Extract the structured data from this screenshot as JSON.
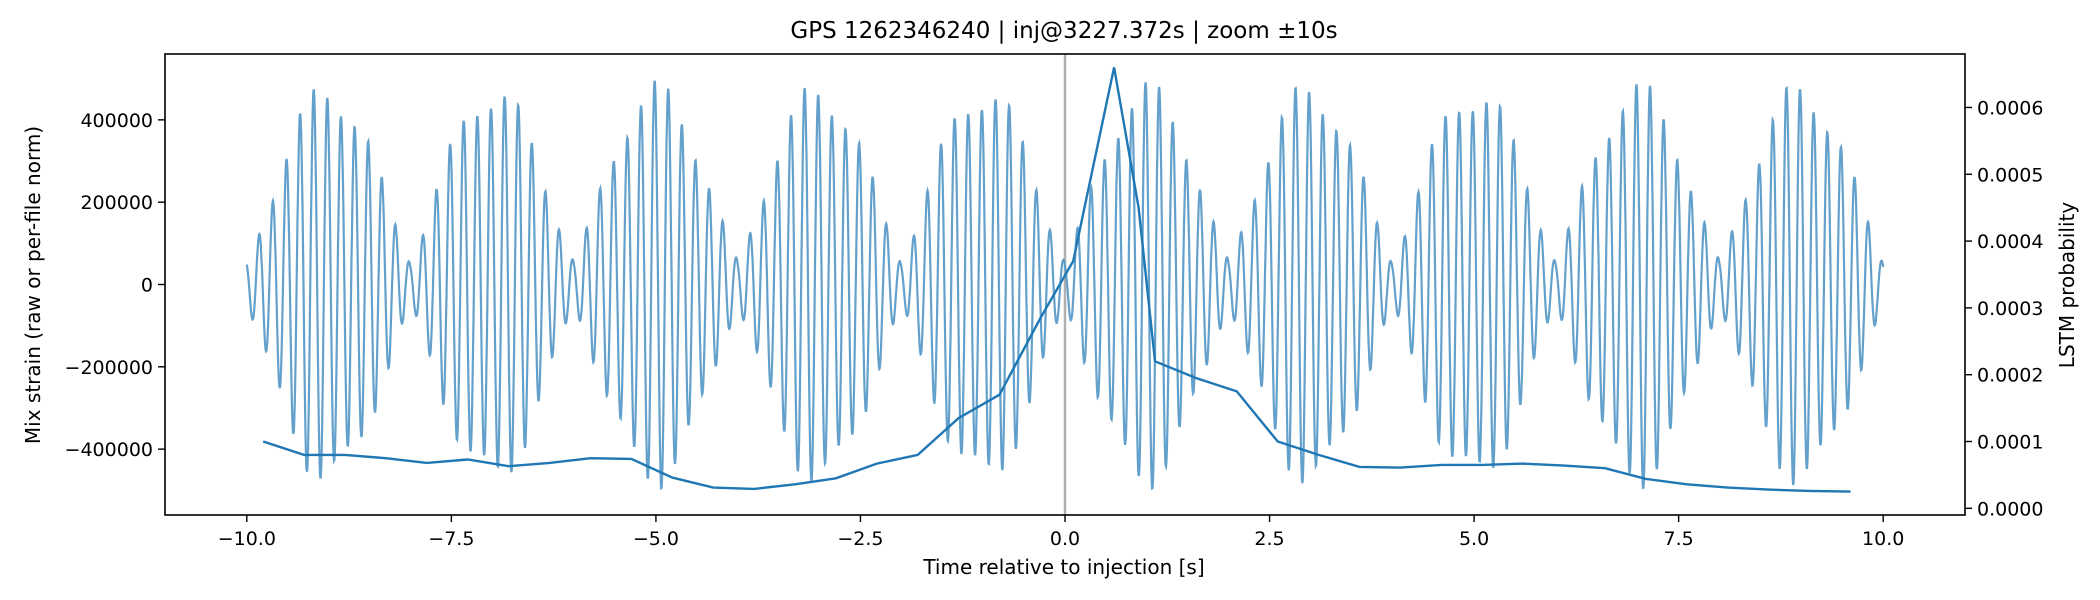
{
  "chart_data": {
    "type": "line",
    "title": "GPS 1262346240 | inj@3227.372s | zoom ±10s",
    "xlabel": "Time relative to injection [s]",
    "ylabel_left": "Mix strain (raw or per-file norm)",
    "ylabel_right": "LSTM probability",
    "xlim": [
      -11,
      11
    ],
    "ylim_left": [
      -560000,
      560000
    ],
    "ylim_right": [
      -1e-05,
      0.00068
    ],
    "x_ticks": [
      -10,
      -7.5,
      -5,
      -2.5,
      0,
      2.5,
      5,
      7.5,
      10
    ],
    "x_tick_labels": [
      "−10.0",
      "−7.5",
      "−5.0",
      "−2.5",
      "0.0",
      "2.5",
      "5.0",
      "7.5",
      "10.0"
    ],
    "y_left_ticks": [
      400000,
      200000,
      0,
      -200000,
      -400000
    ],
    "y_left_tick_labels": [
      "400000",
      "200000",
      "0",
      "−200000",
      "−400000"
    ],
    "y_right_ticks": [
      0.0006,
      0.0005,
      0.0004,
      0.0003,
      0.0002,
      0.0001,
      0.0
    ],
    "y_right_tick_labels": [
      "0.0006",
      "0.0005",
      "0.0004",
      "0.0003",
      "0.0002",
      "0.0001",
      "0.0000"
    ],
    "injection_marker_x": 0,
    "strain_series": {
      "name": "Mix strain",
      "color": "#5b9bc8",
      "x_range": [
        -10,
        10
      ],
      "beat_period_s": 2.0,
      "burst_centers_s": [
        -9,
        -7,
        -5,
        -3,
        -1,
        1,
        3,
        5,
        7,
        9
      ],
      "peak_amplitude": 500000,
      "trough_amplitude": 60000,
      "carrier_cycles_per_burst": 12
    },
    "probability_series": {
      "name": "LSTM probability",
      "color": "#1f77b4",
      "x": [
        -9.8,
        -9.3,
        -8.8,
        -8.3,
        -7.8,
        -7.3,
        -6.8,
        -6.3,
        -5.8,
        -5.3,
        -4.8,
        -4.3,
        -3.8,
        -3.3,
        -2.8,
        -2.3,
        -1.8,
        -1.3,
        -0.8,
        -0.3,
        0.1,
        0.6,
        0.9,
        1.1,
        1.6,
        2.1,
        2.6,
        3.1,
        3.6,
        4.1,
        4.6,
        5.1,
        5.6,
        6.1,
        6.6,
        7.1,
        7.6,
        8.1,
        8.6,
        9.1,
        9.6
      ],
      "values": [
        0.0001,
        8e-05,
        8e-05,
        7.5e-05,
        6.8e-05,
        7.3e-05,
        6.3e-05,
        6.8e-05,
        7.5e-05,
        7.4e-05,
        4.6e-05,
        3.1e-05,
        2.9e-05,
        3.6e-05,
        4.5e-05,
        6.7e-05,
        8e-05,
        0.000135,
        0.00017,
        0.000285,
        0.00037,
        0.00066,
        0.00045,
        0.00022,
        0.000195,
        0.000175,
        0.0001,
        8e-05,
        6.2e-05,
        6.1e-05,
        6.5e-05,
        6.5e-05,
        6.7e-05,
        6.4e-05,
        6e-05,
        4.4e-05,
        3.6e-05,
        3.1e-05,
        2.8e-05,
        2.6e-05,
        2.5e-05
      ]
    }
  }
}
